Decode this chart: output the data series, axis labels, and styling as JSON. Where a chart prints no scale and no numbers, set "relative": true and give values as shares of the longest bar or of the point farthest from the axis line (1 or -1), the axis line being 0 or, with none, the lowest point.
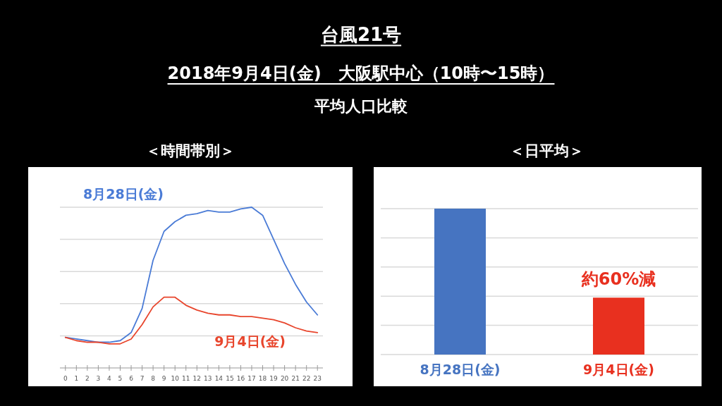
{
  "chart_data": [
    {
      "type": "other",
      "title": "台風21号",
      "subtitle": "2018年9月4日(金)　大阪駅中心（10時〜15時）",
      "annotations": [
        "平均人口比較"
      ]
    },
    {
      "type": "line",
      "title": "＜時間帯別＞",
      "relative": true,
      "grid": "y",
      "x": [
        0,
        1,
        2,
        3,
        4,
        5,
        6,
        7,
        8,
        9,
        10,
        11,
        12,
        13,
        14,
        15,
        16,
        17,
        18,
        19,
        20,
        21,
        22,
        23
      ],
      "xlim": [
        -0.5,
        23.5
      ],
      "xticks": [
        0,
        1,
        2,
        3,
        4,
        5,
        6,
        7,
        8,
        9,
        10,
        11,
        12,
        13,
        14,
        15,
        16,
        17,
        18,
        19,
        20,
        21,
        22,
        23
      ],
      "series": [
        {
          "name": "8月28日(金)",
          "color": "#4a7bd6",
          "values": [
            0.19,
            0.18,
            0.17,
            0.16,
            0.16,
            0.17,
            0.22,
            0.37,
            0.67,
            0.85,
            0.91,
            0.95,
            0.96,
            0.98,
            0.97,
            0.97,
            0.99,
            1.0,
            0.95,
            0.8,
            0.65,
            0.52,
            0.41,
            0.33
          ]
        },
        {
          "name": "9月4日(金)",
          "color": "#e8452c",
          "values": [
            0.19,
            0.17,
            0.16,
            0.16,
            0.15,
            0.15,
            0.18,
            0.27,
            0.38,
            0.44,
            0.44,
            0.39,
            0.36,
            0.34,
            0.33,
            0.33,
            0.32,
            0.32,
            0.31,
            0.3,
            0.28,
            0.25,
            0.23,
            0.22
          ]
        }
      ]
    },
    {
      "type": "bar",
      "title": "＜日平均＞",
      "relative": true,
      "grid": "y",
      "categories": [
        "8月28日(金)",
        "9月4日(金)"
      ],
      "values": [
        1.0,
        0.39
      ],
      "colors": [
        "#4674c1",
        "#e8301f"
      ],
      "annotations": [
        "約60%減"
      ]
    }
  ]
}
